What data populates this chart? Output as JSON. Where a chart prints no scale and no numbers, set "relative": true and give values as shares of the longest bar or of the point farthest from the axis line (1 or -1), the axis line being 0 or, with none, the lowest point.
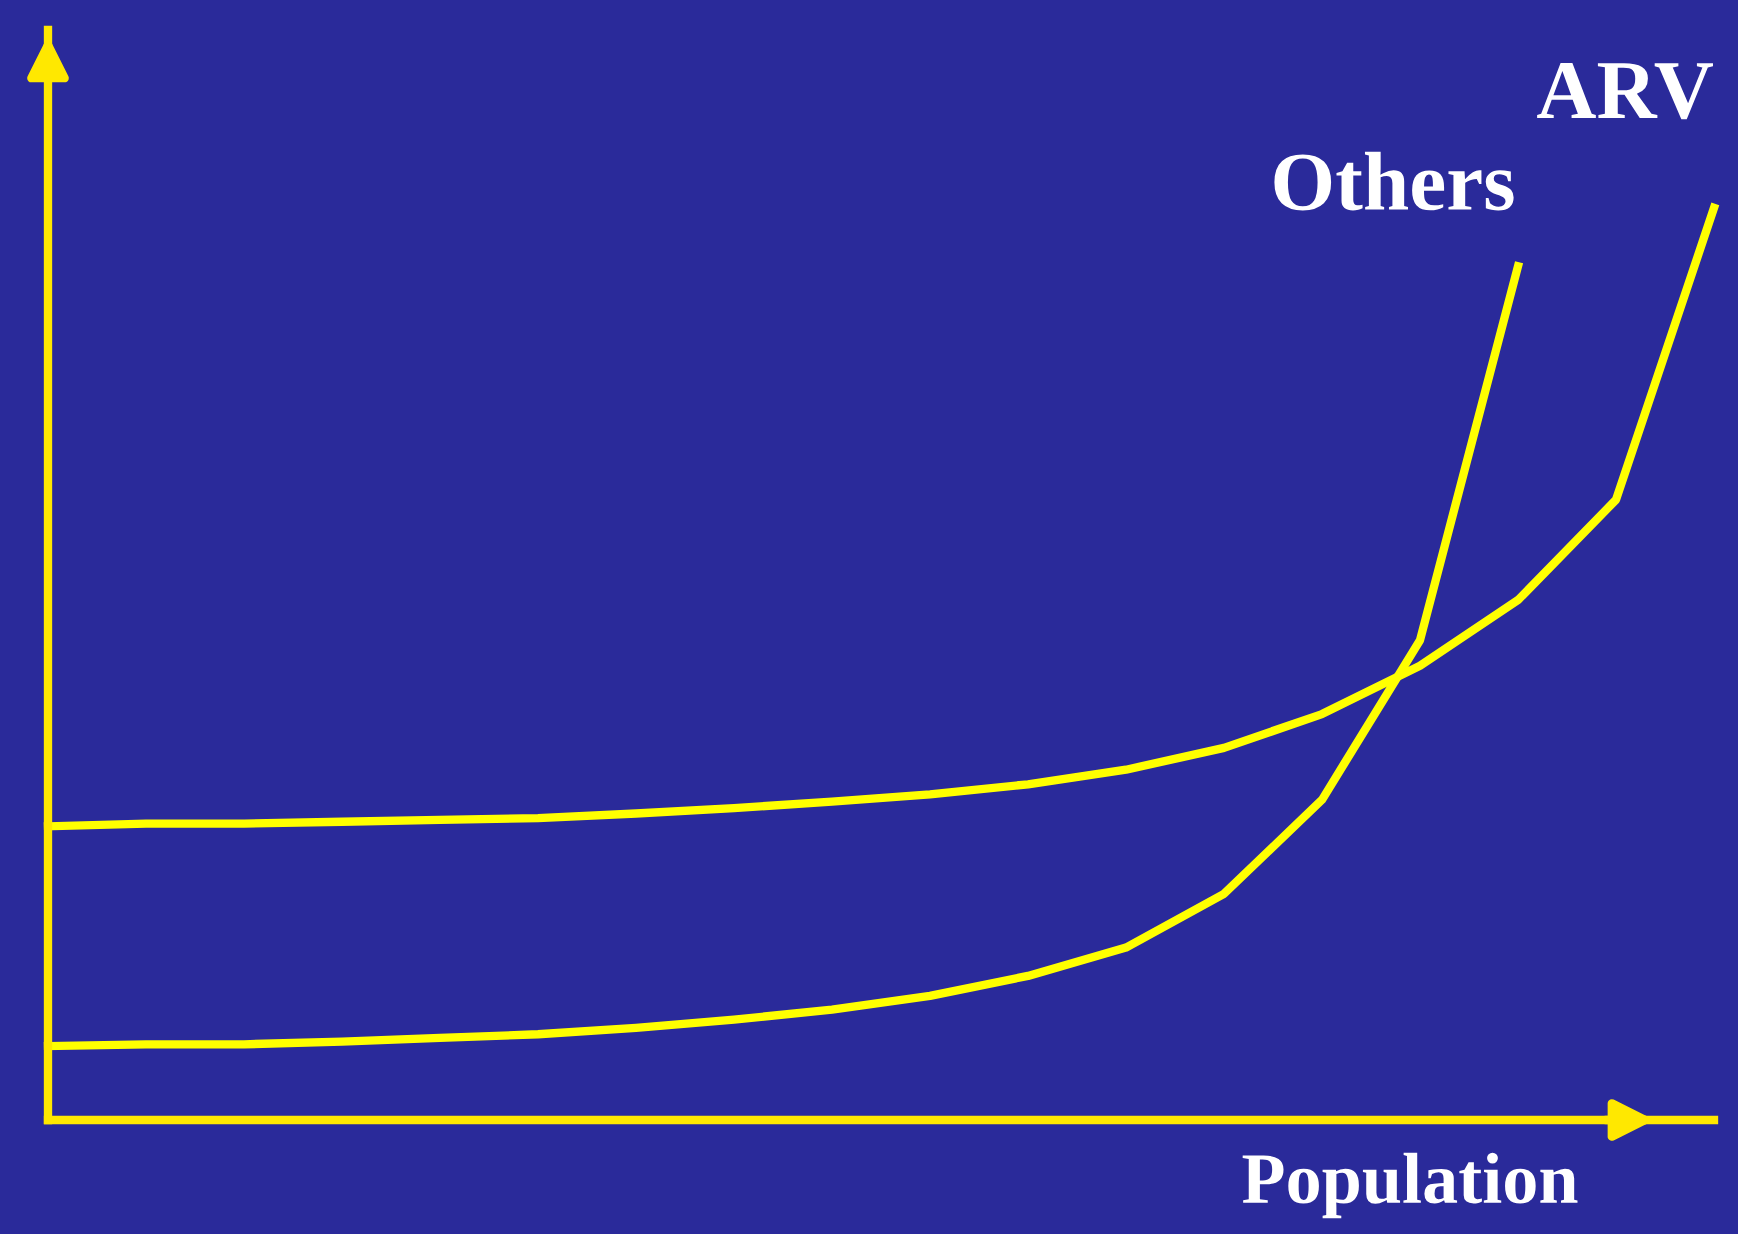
{
  "chart_data": {
    "type": "line",
    "relative": true,
    "xlabel": "Population",
    "categories": [
      null,
      null,
      null,
      null,
      null,
      null,
      null,
      null,
      null,
      null,
      null,
      null,
      null,
      null,
      null,
      null,
      null,
      null
    ],
    "series": [
      {
        "name": "ARV",
        "color": "#ffff00",
        "values": [
          0.322,
          0.325,
          0.325,
          0.327,
          0.329,
          0.331,
          0.336,
          0.342,
          0.349,
          0.357,
          0.368,
          0.384,
          0.408,
          0.445,
          0.498,
          0.57,
          0.68,
          1.0
        ]
      },
      {
        "name": "Others",
        "color": "#ffff00",
        "values": [
          0.081,
          0.083,
          0.083,
          0.086,
          0.09,
          0.094,
          0.101,
          0.11,
          0.121,
          0.136,
          0.158,
          0.189,
          0.248,
          0.351,
          0.526,
          0.936,
          null,
          null
        ]
      }
    ],
    "legend": false,
    "marker": "none",
    "line_style": "solid"
  }
}
